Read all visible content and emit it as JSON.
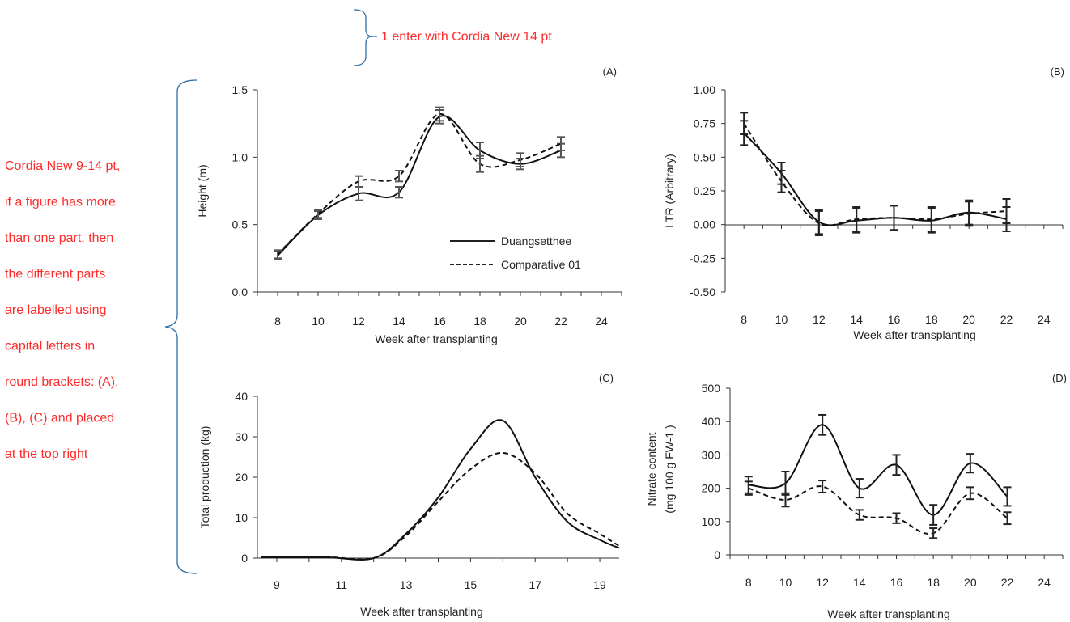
{
  "annotations": {
    "top_note": "1 enter with Cordia New 14 pt",
    "side_note": [
      "Cordia New 9-14 pt,",
      "if a figure has more",
      "than one part, then",
      "the different parts",
      "are labelled using",
      "capital letters in",
      "round brackets: (A),",
      "(B), (C) and placed",
      "at the top right"
    ],
    "color": "#ff2a2a"
  },
  "legend": {
    "solid": "Duangsetthee",
    "dashed": "Comparative 01"
  },
  "chart_data": [
    {
      "panel": "(A)",
      "type": "line",
      "xlabel": "Week after transplanting",
      "ylabel": "Height (m)",
      "xlim": [
        7,
        25
      ],
      "ylim": [
        0,
        1.5
      ],
      "xticks": [
        "8",
        "10",
        "12",
        "14",
        "16",
        "18",
        "20",
        "22",
        "24"
      ],
      "yticks": [
        "0.0",
        "0.5",
        "1.0",
        "1.5"
      ],
      "x": [
        8,
        10,
        12,
        14,
        16,
        18,
        20,
        22
      ],
      "series": [
        {
          "name": "Duangsetthee",
          "style": "solid",
          "values": [
            0.27,
            0.57,
            0.73,
            0.74,
            1.3,
            1.05,
            0.95,
            1.05
          ],
          "errors": [
            0.03,
            0.03,
            0.05,
            0.04,
            0.05,
            0.06,
            0.04,
            0.05
          ]
        },
        {
          "name": "Comparative 01",
          "style": "dashed",
          "values": [
            0.28,
            0.58,
            0.82,
            0.86,
            1.32,
            0.95,
            0.98,
            1.1
          ],
          "errors": [
            0.03,
            0.03,
            0.04,
            0.04,
            0.05,
            0.06,
            0.05,
            0.05
          ]
        }
      ]
    },
    {
      "panel": "(B)",
      "type": "line",
      "xlabel": "Week after transplanting",
      "ylabel": "LTR (Arbitrary)",
      "xlim": [
        7,
        25
      ],
      "ylim": [
        -0.5,
        1.0
      ],
      "xticks": [
        "8",
        "10",
        "12",
        "14",
        "16",
        "18",
        "20",
        "22",
        "24"
      ],
      "yticks": [
        "-0.50",
        "-0.25",
        "0.00",
        "0.25",
        "0.50",
        "0.75",
        "1.00"
      ],
      "x": [
        8,
        10,
        12,
        14,
        16,
        18,
        20,
        22
      ],
      "series": [
        {
          "style": "solid",
          "values": [
            0.68,
            0.38,
            0.02,
            0.03,
            0.05,
            0.03,
            0.09,
            0.04
          ],
          "errors": [
            0.09,
            0.08,
            0.09,
            0.09,
            0.09,
            0.09,
            0.09,
            0.09
          ]
        },
        {
          "style": "dashed",
          "values": [
            0.75,
            0.32,
            0.01,
            0.04,
            0.05,
            0.04,
            0.08,
            0.1
          ],
          "errors": [
            0.08,
            0.08,
            0.09,
            0.09,
            0.09,
            0.09,
            0.09,
            0.09
          ]
        }
      ]
    },
    {
      "panel": "(C)",
      "type": "line",
      "xlabel": "Week after transplanting",
      "ylabel": "Total production (kg)",
      "xlim": [
        8.4,
        19.6
      ],
      "ylim": [
        0,
        40
      ],
      "xticks": [
        "9",
        "11",
        "13",
        "15",
        "17",
        "19"
      ],
      "yticks": [
        "0",
        "10",
        "20",
        "30",
        "40"
      ],
      "series": [
        {
          "style": "solid",
          "x": [
            8.5,
            10.5,
            12.0,
            13.0,
            14.0,
            15.0,
            16.0,
            17.0,
            18.0,
            19.0,
            19.6
          ],
          "values": [
            0.2,
            0.2,
            0.0,
            6.0,
            15.0,
            27.0,
            34.0,
            20.0,
            9.0,
            4.5,
            2.5
          ]
        },
        {
          "style": "dashed",
          "x": [
            8.5,
            10.5,
            12.0,
            13.0,
            14.0,
            15.0,
            16.0,
            17.0,
            18.0,
            19.0,
            19.6
          ],
          "values": [
            0.3,
            0.3,
            0.0,
            5.5,
            14.0,
            22.0,
            26.0,
            21.0,
            11.0,
            6.0,
            3.0
          ]
        }
      ]
    },
    {
      "panel": "(D)",
      "type": "line",
      "xlabel": "Week after transplanting",
      "ylabel_lines": [
        "Nitrate content",
        "(mg 100 g FW-1 )"
      ],
      "xlim": [
        7,
        25
      ],
      "ylim": [
        0,
        500
      ],
      "xticks": [
        "8",
        "10",
        "12",
        "14",
        "16",
        "18",
        "20",
        "22",
        "24"
      ],
      "yticks": [
        "0",
        "100",
        "200",
        "300",
        "400",
        "500"
      ],
      "x": [
        8,
        10,
        12,
        14,
        16,
        18,
        20,
        22
      ],
      "series": [
        {
          "style": "solid",
          "values": [
            210,
            215,
            390,
            200,
            270,
            120,
            275,
            175
          ],
          "errors": [
            25,
            35,
            30,
            28,
            30,
            30,
            28,
            28
          ]
        },
        {
          "style": "dashed",
          "values": [
            200,
            165,
            205,
            120,
            110,
            65,
            185,
            110
          ],
          "errors": [
            20,
            20,
            18,
            15,
            15,
            15,
            18,
            18
          ]
        }
      ]
    }
  ]
}
